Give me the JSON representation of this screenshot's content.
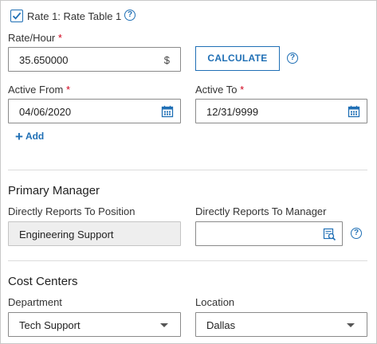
{
  "rate": {
    "checkbox_label": "Rate 1: Rate Table 1",
    "checked": true,
    "rate_hour": {
      "label": "Rate/Hour",
      "required_mark": "*",
      "value": "35.650000",
      "suffix": "$"
    },
    "calculate_label": "CALCULATE",
    "active_from": {
      "label": "Active From",
      "required_mark": "*",
      "value": "04/06/2020"
    },
    "active_to": {
      "label": "Active To",
      "required_mark": "*",
      "value": "12/31/9999"
    },
    "add_label": "Add",
    "add_symbol": "+"
  },
  "primary_manager": {
    "title": "Primary Manager",
    "position": {
      "label": "Directly Reports To Position",
      "value": "Engineering Support"
    },
    "manager": {
      "label": "Directly Reports To Manager",
      "value": ""
    }
  },
  "cost_centers": {
    "title": "Cost Centers",
    "department": {
      "label": "Department",
      "value": "Tech Support"
    },
    "location": {
      "label": "Location",
      "value": "Dallas"
    }
  },
  "icons": {
    "help": "?",
    "calendar": "calendar-icon",
    "lookup": "lookup-icon",
    "dropdown": "chevron-down-icon"
  },
  "colors": {
    "accent": "#1f6fb5",
    "required": "#d0021b",
    "readonly_bg": "#eeeeee"
  }
}
